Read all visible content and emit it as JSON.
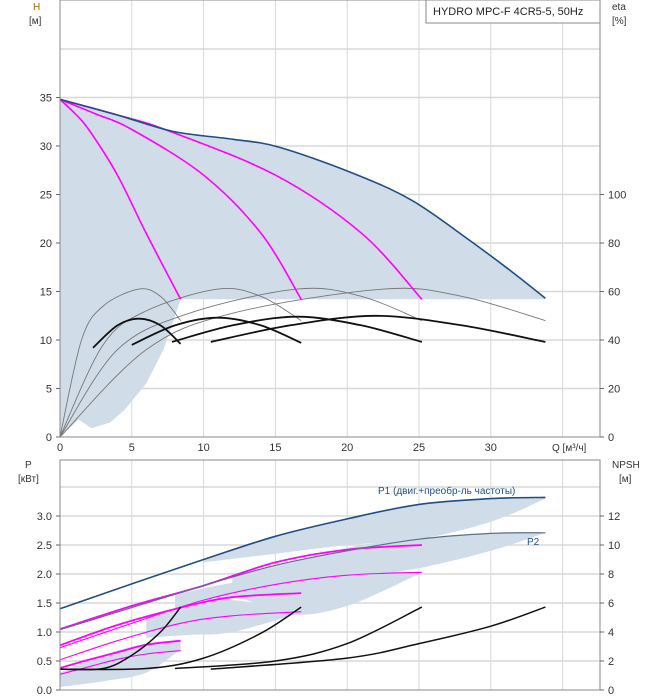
{
  "chart_data": [
    {
      "type": "line",
      "title": "HYDRO MPC-F 4CR5-5, 50Hz",
      "xlabel": "Q [м³/ч]",
      "ylabel": "H",
      "ylabel_unit": "[м]",
      "y2label": "eta",
      "y2label_unit": "[%]",
      "xlim": [
        0,
        37
      ],
      "ylim": [
        0,
        45
      ],
      "y2lim": [
        0,
        180
      ],
      "grid": true,
      "xticks": [
        0,
        5,
        10,
        15,
        20,
        25,
        30
      ],
      "yticks": [
        0,
        5,
        10,
        15,
        20,
        25,
        30,
        35
      ],
      "y2ticks": [
        0,
        20,
        40,
        60,
        80,
        100
      ],
      "colors": {
        "max_curve": "#1f4e85",
        "speed_curves": "#ff00ff",
        "eta_curves": "#111111",
        "area": "#d0dce7"
      },
      "max_curve": {
        "x": [
          0,
          4,
          7.9,
          12,
          15.2,
          20.4,
          24.5,
          28.5,
          31.5,
          33.8
        ],
        "y": [
          34.8,
          33.2,
          31.5,
          30.7,
          29.9,
          27.2,
          24.4,
          20.3,
          17.0,
          14.3
        ]
      },
      "speed_curves": [
        {
          "x": [
            0,
            1,
            2,
            4,
            6,
            8.4
          ],
          "y": [
            34.8,
            33.4,
            31.7,
            27,
            21,
            14.2
          ]
        },
        {
          "x": [
            0,
            2.5,
            5,
            10,
            14,
            16.8
          ],
          "y": [
            34.8,
            33.3,
            31.7,
            27,
            21,
            14.2
          ]
        },
        {
          "x": [
            0,
            4,
            7.5,
            15,
            21,
            25.2
          ],
          "y": [
            34.8,
            33.2,
            31.6,
            27,
            21,
            14.2
          ]
        }
      ],
      "min_head": 14.2,
      "eta_thin": [
        {
          "x": [
            0,
            1.5,
            3,
            5.5,
            7,
            8.4
          ],
          "y": [
            0,
            40,
            54,
            61,
            58,
            48
          ]
        },
        {
          "x": [
            0,
            3,
            6,
            11,
            14,
            16.8
          ],
          "y": [
            0,
            38,
            52,
            61,
            58,
            48
          ]
        },
        {
          "x": [
            0,
            4,
            9,
            16.5,
            21,
            25.2
          ],
          "y": [
            0,
            36,
            51,
            61,
            58,
            48
          ]
        },
        {
          "x": [
            0,
            6,
            12,
            22.5,
            28,
            33.8
          ],
          "y": [
            0,
            36,
            51,
            61,
            58,
            48
          ]
        }
      ],
      "eta_thick": [
        {
          "x": [
            2.3,
            4,
            5.5,
            7,
            8.4
          ],
          "y": [
            36.8,
            46,
            48.8,
            46,
            38.4
          ]
        },
        {
          "x": [
            5,
            8,
            11,
            14,
            16.8
          ],
          "y": [
            38,
            46,
            49.2,
            46,
            38.8
          ]
        },
        {
          "x": [
            7.8,
            12,
            16.5,
            21,
            25.2
          ],
          "y": [
            39.2,
            46,
            49.6,
            46,
            39.2
          ]
        },
        {
          "x": [
            10.5,
            16,
            22,
            28,
            33.8
          ],
          "y": [
            39.2,
            46,
            50,
            46,
            39.2
          ]
        }
      ]
    },
    {
      "type": "line",
      "ylabel": "P",
      "ylabel_unit": "[кВт]",
      "y2label": "NPSH",
      "y2label_unit": "[м]",
      "xlim": [
        0,
        37
      ],
      "ylim": [
        0,
        3.9
      ],
      "y2lim": [
        0,
        15.6
      ],
      "grid": true,
      "yticks": [
        0.0,
        0.5,
        1.0,
        1.5,
        2.0,
        2.5,
        3.0
      ],
      "ytick_labels": [
        "0.0",
        "0.5",
        "1.0",
        "1.5",
        "2.0",
        "2.5",
        "3.0"
      ],
      "y2ticks": [
        0,
        2,
        4,
        6,
        8,
        10,
        12
      ],
      "annotations": {
        "p1": "P1 (двиг.+преобр-ль частоты)",
        "p2": "P2"
      },
      "colors": {
        "p1": "#1f4e85",
        "p2": "#5a6f88",
        "power": "#ff00ff",
        "npsh": "#111111",
        "area": "#d0dce7"
      },
      "p1": {
        "x": [
          0,
          5,
          10,
          15,
          20,
          25,
          30,
          33.8
        ],
        "y": [
          1.4,
          1.83,
          2.25,
          2.65,
          2.95,
          3.2,
          3.3,
          3.32
        ]
      },
      "p2": {
        "x": [
          0,
          5,
          10,
          15,
          20,
          25,
          30,
          33.8
        ],
        "y": [
          1.04,
          1.42,
          1.8,
          2.15,
          2.4,
          2.6,
          2.7,
          2.71
        ]
      },
      "power_curves": [
        {
          "weight": "thick",
          "x": [
            0,
            5,
            10,
            15,
            20,
            25.2
          ],
          "y": [
            1.05,
            1.45,
            1.8,
            2.2,
            2.42,
            2.5
          ]
        },
        {
          "weight": "thin",
          "x": [
            0,
            5,
            10,
            15,
            20,
            25.2
          ],
          "y": [
            0.73,
            1.15,
            1.55,
            1.82,
            1.98,
            2.03
          ]
        },
        {
          "weight": "thick",
          "x": [
            0,
            4,
            8.4,
            12,
            16.8
          ],
          "y": [
            0.77,
            1.12,
            1.42,
            1.6,
            1.67
          ]
        },
        {
          "weight": "thin",
          "x": [
            0,
            4,
            8.4,
            12,
            16.8
          ],
          "y": [
            0.52,
            0.85,
            1.15,
            1.28,
            1.35
          ]
        },
        {
          "weight": "thick",
          "x": [
            0,
            2,
            4,
            6,
            8.4
          ],
          "y": [
            0.38,
            0.52,
            0.65,
            0.78,
            0.85
          ]
        },
        {
          "weight": "thin",
          "x": [
            0,
            2,
            4,
            6,
            8.4
          ],
          "y": [
            0.27,
            0.4,
            0.53,
            0.62,
            0.68
          ]
        }
      ],
      "npsh_curves": [
        {
          "x": [
            0,
            3,
            5,
            7,
            8.4
          ],
          "y": [
            1.44,
            1.48,
            2.4,
            4.0,
            5.72
          ]
        },
        {
          "x": [
            0,
            6,
            10,
            14,
            16.8
          ],
          "y": [
            1.44,
            1.48,
            2.2,
            3.92,
            5.72
          ]
        },
        {
          "x": [
            8,
            15,
            20,
            25.2
          ],
          "y": [
            1.48,
            2.0,
            3.2,
            5.72
          ]
        },
        {
          "x": [
            10.5,
            20,
            25,
            30,
            33.8
          ],
          "y": [
            1.44,
            2.2,
            3.2,
            4.4,
            5.72
          ]
        }
      ]
    }
  ]
}
